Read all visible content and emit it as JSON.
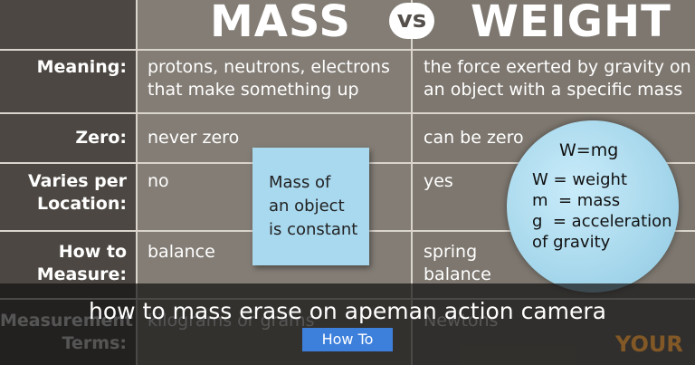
{
  "header": {
    "mass": "MASS",
    "vs": "vs",
    "weight": "WEIGHT"
  },
  "table": {
    "rows": [
      {
        "label": [
          "Meaning:"
        ],
        "mass": [
          "protons, neutrons, electrons",
          "that make something up"
        ],
        "weight": [
          "the force exerted by gravity on",
          "an object with a specific mass"
        ]
      },
      {
        "label": [
          "Zero:"
        ],
        "mass": [
          "never zero"
        ],
        "weight": [
          "can be zero"
        ]
      },
      {
        "label": [
          "Varies per",
          "Location:"
        ],
        "mass": [
          "no"
        ],
        "weight": [
          "yes"
        ]
      },
      {
        "label": [
          "How to",
          "Measure:"
        ],
        "mass": [
          "balance"
        ],
        "weight": [
          "spring",
          "balance"
        ]
      },
      {
        "label": [
          "Measurement",
          "Terms:"
        ],
        "mass": [
          "kilograms or grams"
        ],
        "weight": [
          "Newtons"
        ]
      }
    ]
  },
  "note": [
    "Mass of",
    "an object",
    "is constant"
  ],
  "globe": {
    "formula": "W=mg",
    "lines": [
      "W = weight",
      "m  = mass",
      "g  = acceleration",
      "of gravity"
    ]
  },
  "caption": "how to mass erase on apeman action camera",
  "button": {
    "icon": "",
    "label": "How To"
  },
  "logo": "YOUR"
}
